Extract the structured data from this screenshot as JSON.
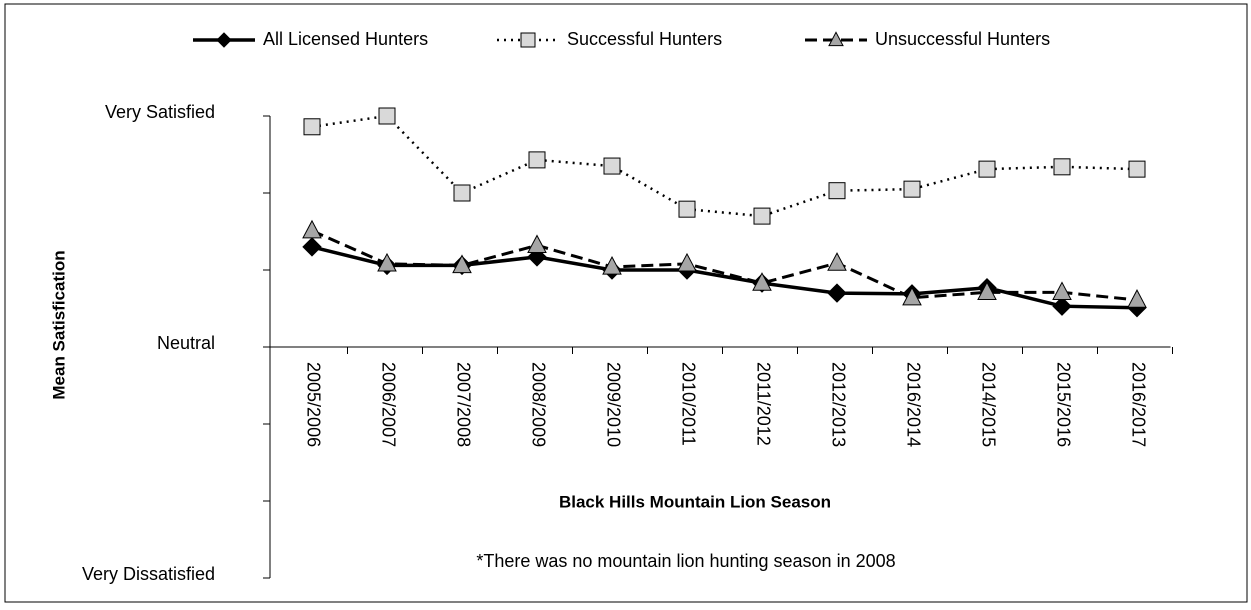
{
  "chart_data": {
    "type": "line",
    "x_label": "Black Hills Mountain Lion Season",
    "y_label": "Mean Satisfication",
    "annotation": "*There was no mountain lion hunting season in 2008",
    "categories": [
      "2005/2006",
      "2006/2007",
      "2007/2008",
      "2008/2009",
      "2009/2010",
      "2010/2011",
      "2011/2012",
      "2012/2013",
      "2016/2014",
      "2014/2015",
      "2015/2016",
      "2016/2017"
    ],
    "ylim": [
      -3,
      3
    ],
    "yticks": [
      {
        "value": -3,
        "label": "Very Dissatisfied"
      },
      -2,
      -1,
      {
        "value": 0,
        "label": "Neutral"
      },
      1,
      2,
      {
        "value": 3,
        "label": "Very Satisfied"
      }
    ],
    "legend": "top",
    "series": [
      {
        "name": "All Licensed Hunters",
        "color": "#000000",
        "marker_color": "#000000",
        "marker": "diamond",
        "line_style": "solid",
        "values": [
          1.3,
          1.06,
          1.06,
          1.17,
          1.0,
          1.0,
          0.83,
          0.7,
          0.69,
          0.77,
          0.53,
          0.51
        ]
      },
      {
        "name": "Successful Hunters",
        "color": "#000000",
        "marker_color": "#d9d9d9",
        "marker": "square",
        "line_style": "dotted",
        "values": [
          2.86,
          3.0,
          2.0,
          2.43,
          2.35,
          1.79,
          1.7,
          2.03,
          2.05,
          2.31,
          2.34,
          2.31
        ]
      },
      {
        "name": "Unsuccessful Hunters",
        "color": "#000000",
        "marker_color": "#a6a6a6",
        "marker": "triangle",
        "line_style": "dashed",
        "values": [
          1.51,
          1.08,
          1.06,
          1.32,
          1.04,
          1.08,
          0.83,
          1.09,
          0.64,
          0.71,
          0.71,
          0.61
        ]
      }
    ]
  }
}
